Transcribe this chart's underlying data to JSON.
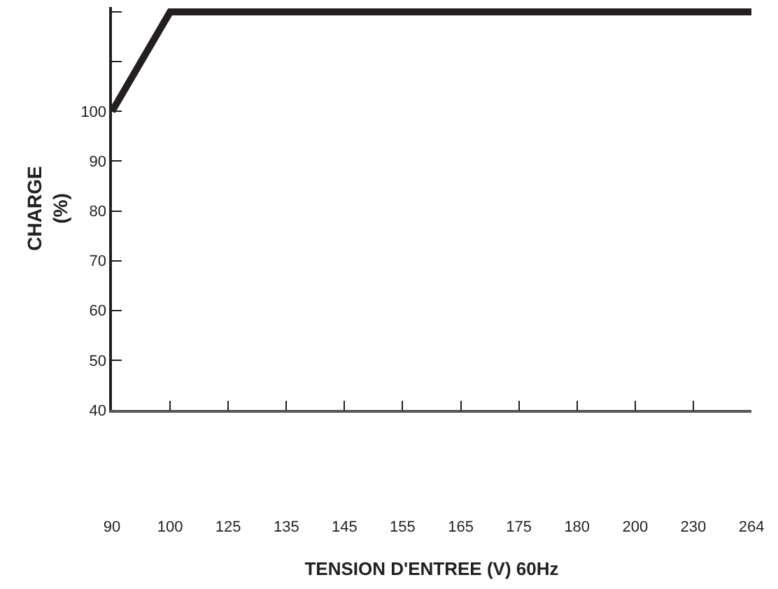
{
  "chart_data": {
    "type": "line",
    "xlabel": "TENSION D'ENTREE (V) 60Hz",
    "ylabel": "CHARGE (%)",
    "categories": [
      "90",
      "100",
      "125",
      "135",
      "145",
      "155",
      "165",
      "175",
      "180",
      "200",
      "230",
      "264"
    ],
    "series": [
      {
        "color": "#231f20",
        "values": [
          100,
          120,
          120,
          120,
          120,
          120,
          120,
          120,
          120,
          120,
          120,
          120
        ]
      }
    ],
    "ylim": [
      40,
      121
    ],
    "yticks": [
      40,
      50,
      60,
      70,
      80,
      90,
      100,
      {
        "value": 110,
        "label": null
      },
      {
        "value": 120,
        "label": null
      }
    ],
    "grid": false,
    "marker": "none",
    "line_style": "solid"
  }
}
